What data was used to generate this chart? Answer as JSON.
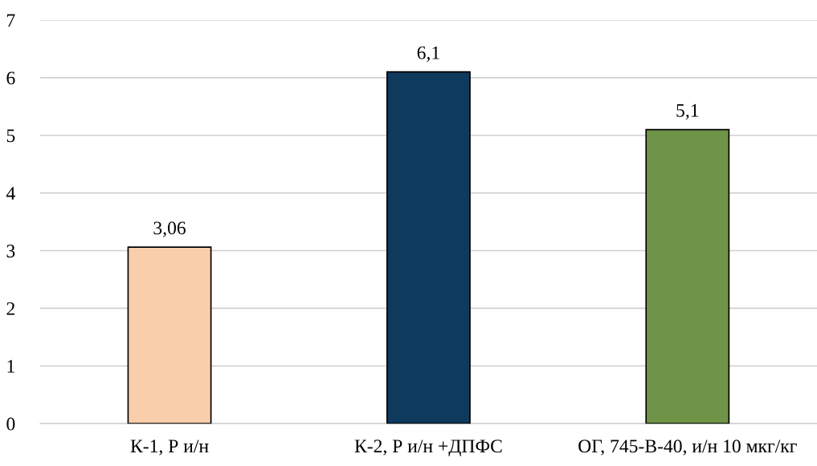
{
  "chart_data": {
    "type": "bar",
    "categories": [
      "К-1, Р и/н",
      "К-2, Р и/н +ДПФС",
      "ОГ, 745-В-40, и/н 10 мкг/кг"
    ],
    "values": [
      3.06,
      6.1,
      5.1
    ],
    "colors": [
      "#f8cfaa",
      "#0e3a5e",
      "#6f9447"
    ],
    "value_labels": [
      "3,06",
      "6,1",
      "5,1"
    ],
    "ylim": [
      0,
      7
    ],
    "yticks": [
      0,
      1,
      2,
      3,
      4,
      5,
      6,
      7
    ],
    "grid": "y",
    "legend": false
  }
}
